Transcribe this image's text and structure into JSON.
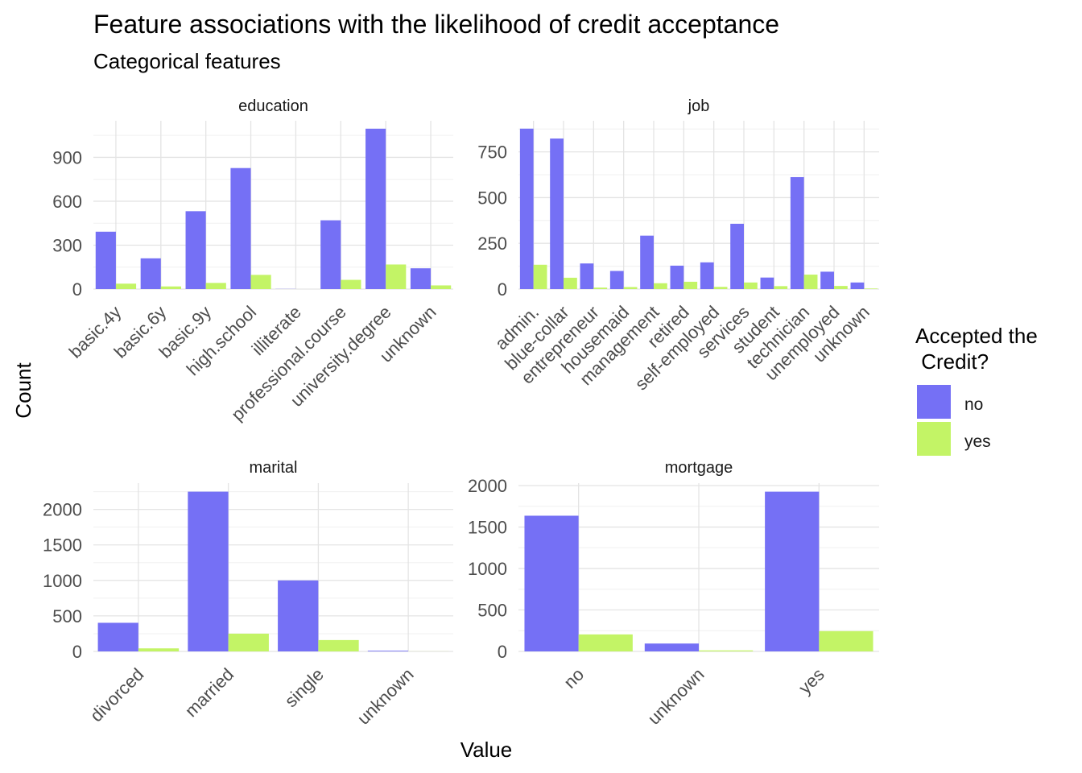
{
  "title": "Feature associations with the likelihood of credit acceptance",
  "subtitle": "Categorical features",
  "xlabel": "Value",
  "ylabel": "Count",
  "legend": {
    "title_line1": "Accepted the",
    "title_line2": " Credit?",
    "position": "right",
    "items": [
      {
        "label": "no",
        "color": "#7570F5"
      },
      {
        "label": "yes",
        "color": "#C3F466"
      }
    ]
  },
  "chart_data": [
    {
      "type": "bar",
      "facet": "education",
      "categories": [
        "basic.4y",
        "basic.6y",
        "basic.9y",
        "high.school",
        "illiterate",
        "professional.course",
        "university.degree",
        "unknown"
      ],
      "series": [
        {
          "name": "no",
          "values": [
            392,
            210,
            532,
            827,
            1,
            470,
            1096,
            142
          ]
        },
        {
          "name": "yes",
          "values": [
            37,
            18,
            42,
            97,
            0,
            63,
            168,
            25
          ]
        }
      ],
      "yticks": [
        0,
        300,
        600,
        900
      ],
      "ylim": [
        0,
        1150
      ],
      "grid": true
    },
    {
      "type": "bar",
      "facet": "job",
      "categories": [
        "admin.",
        "blue-collar",
        "entrepreneur",
        "housemaid",
        "management",
        "retired",
        "self-employed",
        "services",
        "student",
        "technician",
        "unemployed",
        "unknown"
      ],
      "series": [
        {
          "name": "no",
          "values": [
            877,
            823,
            140,
            99,
            292,
            128,
            146,
            357,
            63,
            612,
            95,
            36
          ]
        },
        {
          "name": "yes",
          "values": [
            133,
            62,
            8,
            11,
            32,
            40,
            12,
            36,
            16,
            79,
            17,
            3
          ]
        }
      ],
      "yticks": [
        0,
        250,
        500,
        750
      ],
      "ylim": [
        0,
        920
      ],
      "grid": true
    },
    {
      "type": "bar",
      "facet": "marital",
      "categories": [
        "divorced",
        "married",
        "single",
        "unknown"
      ],
      "series": [
        {
          "name": "no",
          "values": [
            403,
            2250,
            1000,
            10
          ]
        },
        {
          "name": "yes",
          "values": [
            43,
            250,
            160,
            1
          ]
        }
      ],
      "yticks": [
        0,
        500,
        1000,
        1500,
        2000
      ],
      "ylim": [
        0,
        2370
      ],
      "grid": true
    },
    {
      "type": "bar",
      "facet": "mortgage",
      "categories": [
        "no",
        "unknown",
        "yes"
      ],
      "series": [
        {
          "name": "no",
          "values": [
            1637,
            95,
            1927
          ]
        },
        {
          "name": "yes",
          "values": [
            205,
            12,
            245
          ]
        }
      ],
      "yticks": [
        0,
        500,
        1000,
        1500,
        2000
      ],
      "ylim": [
        0,
        2030
      ],
      "grid": true
    }
  ]
}
